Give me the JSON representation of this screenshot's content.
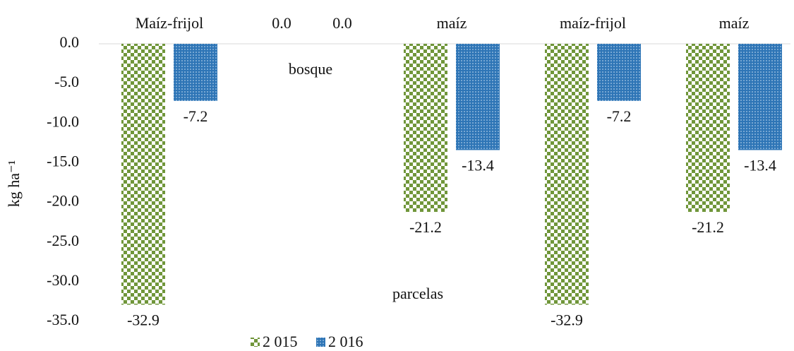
{
  "chart_data": {
    "type": "bar",
    "categories": [
      "Maíz-frijol",
      "bosque",
      "maíz",
      "maíz-frijol",
      "maíz"
    ],
    "series": [
      {
        "name": "2 015",
        "color": "#70963a",
        "values": [
          -32.9,
          0,
          -21.2,
          -32.9,
          -21.2
        ],
        "value_labels": [
          "-32.9",
          "0.0",
          "-21.2",
          "-32.9",
          "-21.2"
        ]
      },
      {
        "name": "2 016",
        "color": "#2e75b6",
        "values": [
          -7.2,
          0,
          -13.4,
          -7.2,
          -13.4
        ],
        "value_labels": [
          "-7.2",
          "0.0",
          "-13.4",
          "-7.2",
          "-13.4"
        ]
      }
    ],
    "ylabel": "kg ha⁻¹",
    "xlabel": "parcelas",
    "ylim": [
      -35,
      0
    ],
    "yticks": [
      {
        "value": 0,
        "label": "0.0"
      },
      {
        "value": -5,
        "label": "-5.0"
      },
      {
        "value": -10,
        "label": "-10.0"
      },
      {
        "value": -15,
        "label": "-15.0"
      },
      {
        "value": -20,
        "label": "-20.0"
      },
      {
        "value": -25,
        "label": "-25.0"
      },
      {
        "value": -30,
        "label": "-30.0"
      },
      {
        "value": -35,
        "label": "-35.0"
      }
    ],
    "grid": false,
    "legend": "bottom"
  }
}
